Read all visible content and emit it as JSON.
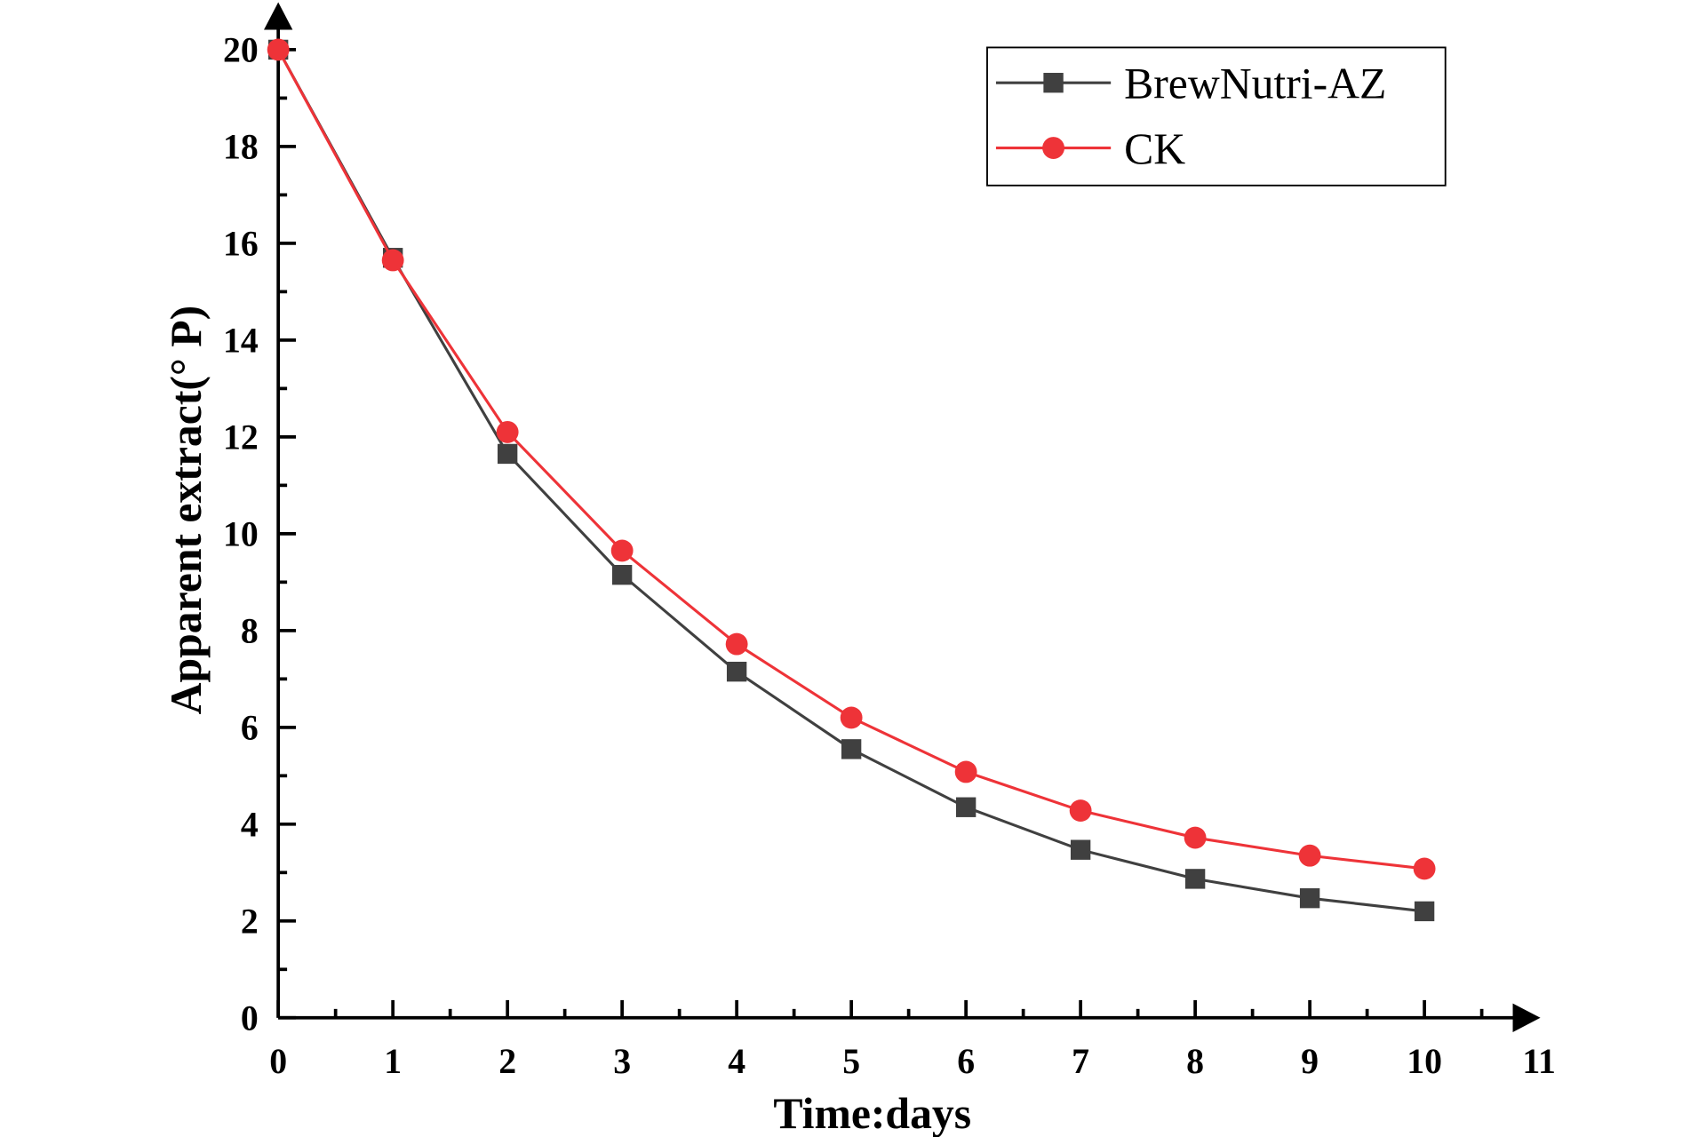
{
  "chart_data": {
    "type": "line",
    "title": "",
    "xlabel": "Time:days",
    "ylabel": "Apparent extract(° P)",
    "xlim": [
      0,
      11
    ],
    "ylim": [
      0,
      20
    ],
    "xticks": [
      "0",
      "1",
      "2",
      "3",
      "4",
      "5",
      "6",
      "7",
      "8",
      "9",
      "10",
      "11"
    ],
    "yticks": [
      "0",
      "2",
      "4",
      "6",
      "8",
      "10",
      "12",
      "14",
      "16",
      "18",
      "20"
    ],
    "grid": false,
    "legend_position": "top-right",
    "x": [
      0,
      1,
      2,
      3,
      4,
      5,
      6,
      7,
      8,
      9,
      10
    ],
    "series": [
      {
        "name": "BrewNutri-AZ",
        "color": "#404040",
        "marker": "square",
        "values": [
          20.0,
          15.7,
          11.65,
          9.15,
          7.15,
          5.55,
          4.35,
          3.47,
          2.87,
          2.47,
          2.2
        ]
      },
      {
        "name": "CK",
        "color": "#ee3338",
        "marker": "circle",
        "values": [
          20.0,
          15.65,
          12.1,
          9.65,
          7.72,
          6.2,
          5.08,
          4.28,
          3.72,
          3.35,
          3.08
        ]
      }
    ]
  }
}
